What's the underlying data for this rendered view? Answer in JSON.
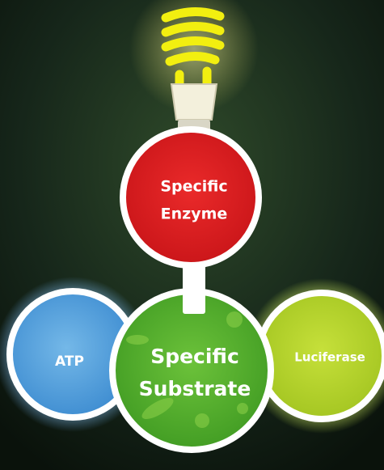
{
  "nodes": [
    {
      "label_lines": [
        "Specific",
        "Enzyme"
      ]
    },
    {
      "label_lines": [
        "ATP"
      ]
    },
    {
      "label_lines": [
        "Specific",
        "Substrate"
      ]
    },
    {
      "label_lines": [
        "Luciferase"
      ]
    }
  ]
}
